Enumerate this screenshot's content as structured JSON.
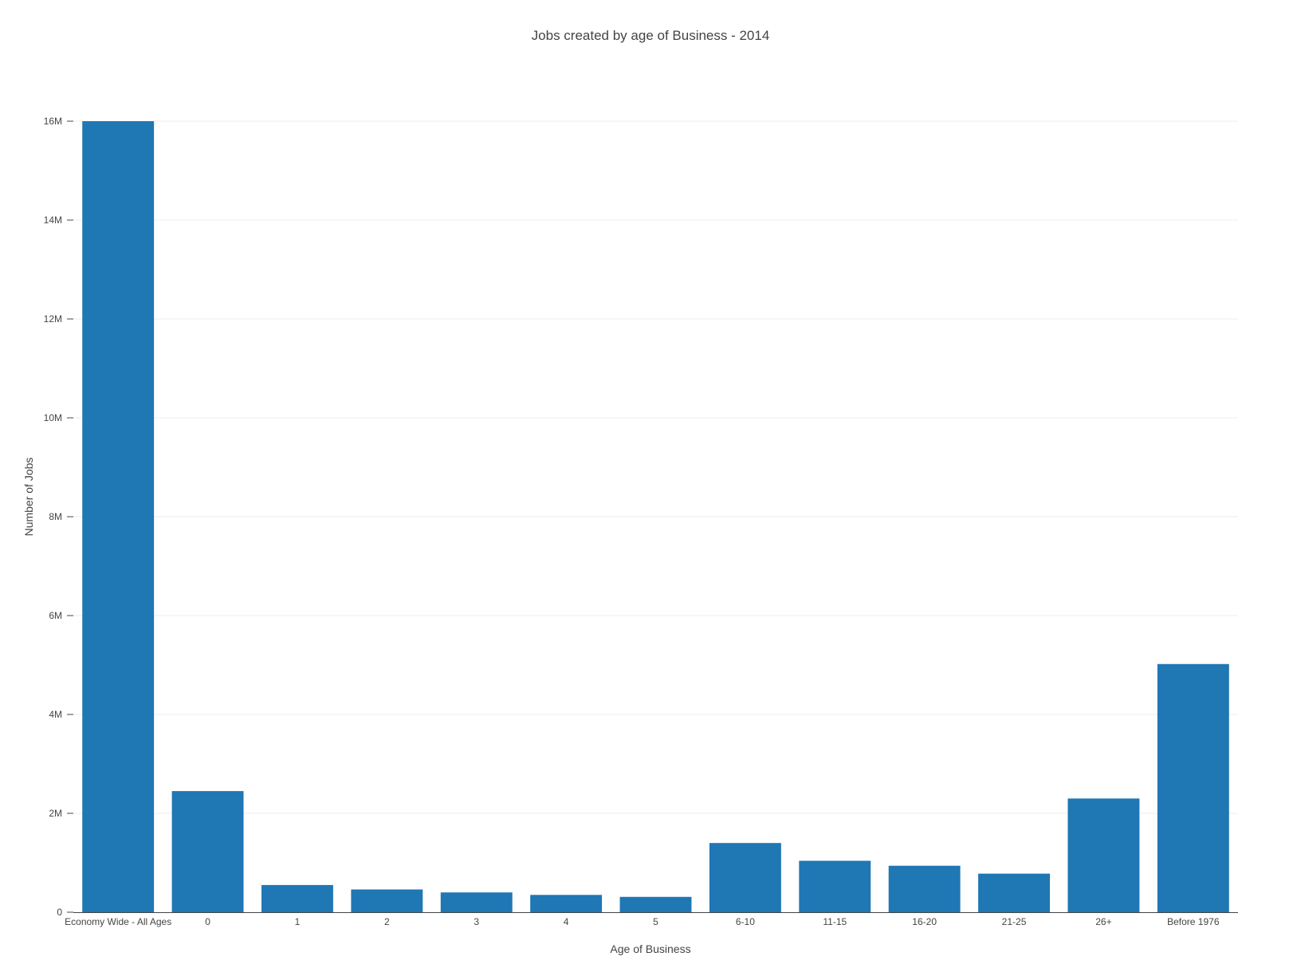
{
  "chart_data": {
    "type": "bar",
    "title": "Jobs created by age of Business - 2014",
    "xlabel": "Age of Business",
    "ylabel": "Number of Jobs",
    "categories": [
      "Economy Wide - All Ages",
      "0",
      "1",
      "2",
      "3",
      "4",
      "5",
      "6-10",
      "11-15",
      "16-20",
      "21-25",
      "26+",
      "Before 1976"
    ],
    "values": [
      16000000,
      2450000,
      550000,
      460000,
      400000,
      350000,
      310000,
      1400000,
      1040000,
      940000,
      780000,
      2300000,
      5020000
    ],
    "ylim": [
      0,
      16000000
    ],
    "yticks": [
      0,
      2000000,
      4000000,
      6000000,
      8000000,
      10000000,
      12000000,
      14000000,
      16000000
    ],
    "ytick_labels": [
      "0",
      "2M",
      "4M",
      "6M",
      "8M",
      "10M",
      "12M",
      "14M",
      "16M"
    ],
    "grid": true,
    "bar_color": "#1f77b4"
  }
}
